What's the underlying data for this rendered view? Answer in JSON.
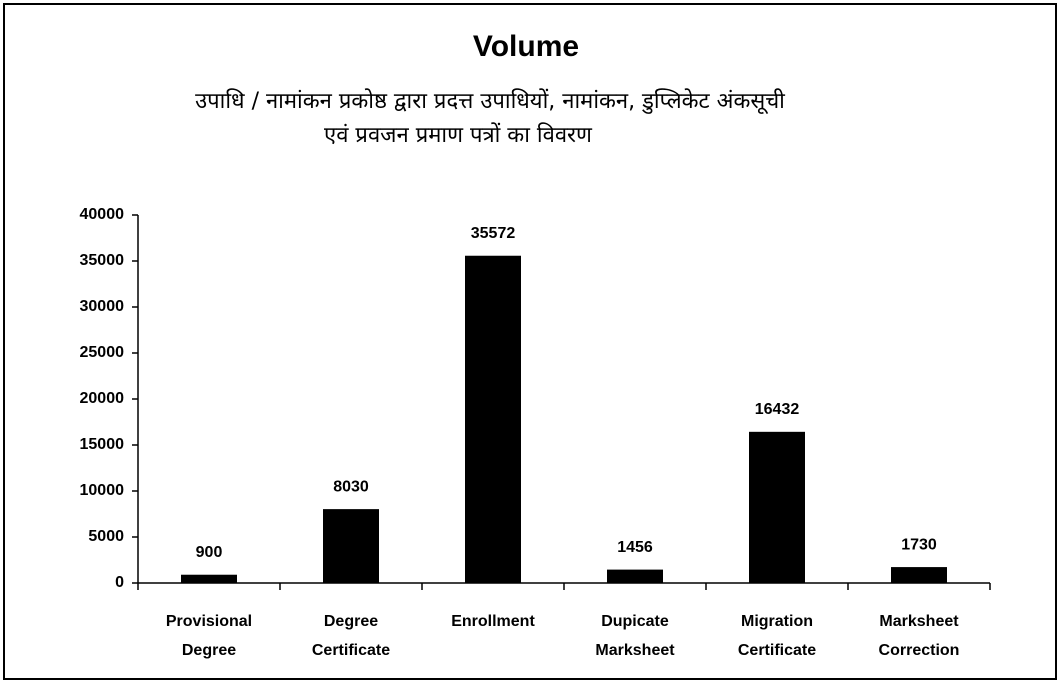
{
  "chart_data": {
    "type": "bar",
    "title": "Volume",
    "subtitle": [
      "उपाधि / नामांकन प्रकोष्ठ द्वारा प्रदत्त उपाधियों, नामांकन, डुप्लिकेट अंकसूची",
      "एवं प्रवजन प्रमाण पत्रों का विवरण"
    ],
    "categories": [
      [
        "Provisional",
        "Degree"
      ],
      [
        "Degree",
        "Certificate"
      ],
      [
        "Enrollment"
      ],
      [
        "Dupicate",
        "Marksheet"
      ],
      [
        "Migration",
        "Certificate"
      ],
      [
        "Marksheet",
        "Correction"
      ]
    ],
    "values": [
      900,
      8030,
      35572,
      1456,
      16432,
      1730
    ],
    "color": "#000000",
    "ylim": [
      0,
      40000
    ],
    "yticks": [
      0,
      5000,
      10000,
      15000,
      20000,
      25000,
      30000,
      35000,
      40000
    ],
    "grid": false
  }
}
